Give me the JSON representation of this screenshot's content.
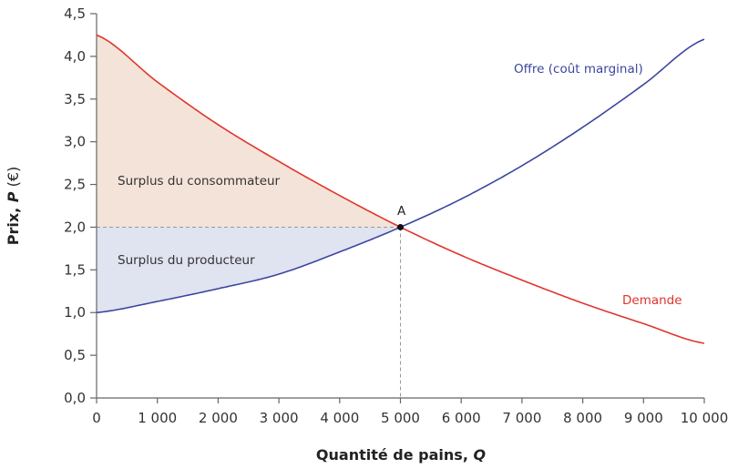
{
  "chart_data": {
    "type": "line",
    "title": "",
    "xlabel": "Quantité de pains, Q",
    "ylabel": "Prix, P (€)",
    "xlim": [
      0,
      10000
    ],
    "ylim": [
      0,
      4.5
    ],
    "x_ticks": [
      "0",
      "1 000",
      "2 000",
      "3 000",
      "4 000",
      "5 000",
      "6 000",
      "7 000",
      "8 000",
      "9 000",
      "10 000"
    ],
    "y_ticks": [
      "0,0",
      "0,5",
      "1,0",
      "1,5",
      "2,0",
      "2,5",
      "3,0",
      "3,5",
      "4,0",
      "4,5"
    ],
    "grid": false,
    "x": [
      0,
      1000,
      2000,
      3000,
      4000,
      5000,
      6000,
      7000,
      8000,
      9000,
      10000
    ],
    "series": [
      {
        "name": "Offre (coût marginal)",
        "color": "#3c46a0",
        "values": [
          1.0,
          1.13,
          1.28,
          1.45,
          1.71,
          2.0,
          2.33,
          2.72,
          3.17,
          3.67,
          4.2
        ]
      },
      {
        "name": "Demande",
        "color": "#e0352b",
        "values": [
          4.25,
          3.7,
          3.2,
          2.77,
          2.37,
          2.0,
          1.67,
          1.38,
          1.11,
          0.87,
          0.64
        ]
      }
    ],
    "equilibrium": {
      "label": "A",
      "q": 5000,
      "p": 2.0
    },
    "areas": [
      {
        "name": "Surplus du consommateur",
        "color": "#f4e3d9",
        "between": [
          "Demande",
          "P = 2,0"
        ],
        "q_range": [
          0,
          5000
        ]
      },
      {
        "name": "Surplus du producteur",
        "color": "#e0e3f0",
        "between": [
          "P = 2,0",
          "Offre (coût marginal)"
        ],
        "q_range": [
          0,
          5000
        ]
      }
    ],
    "annotations": [
      "Surplus du consommateur",
      "Surplus du producteur",
      "Offre (coût marginal)",
      "Demande",
      "A"
    ]
  },
  "labels": {
    "consumer_surplus": "Surplus du consommateur",
    "producer_surplus": "Surplus du producteur",
    "supply": "Offre (coût marginal)",
    "demand": "Demande",
    "point_a": "A",
    "x_axis_title_main": "Quantité de pains, ",
    "x_axis_title_var": "Q",
    "y_axis_title_main": "Prix, ",
    "y_axis_title_var": "P",
    "y_axis_title_unit": " (€)"
  }
}
